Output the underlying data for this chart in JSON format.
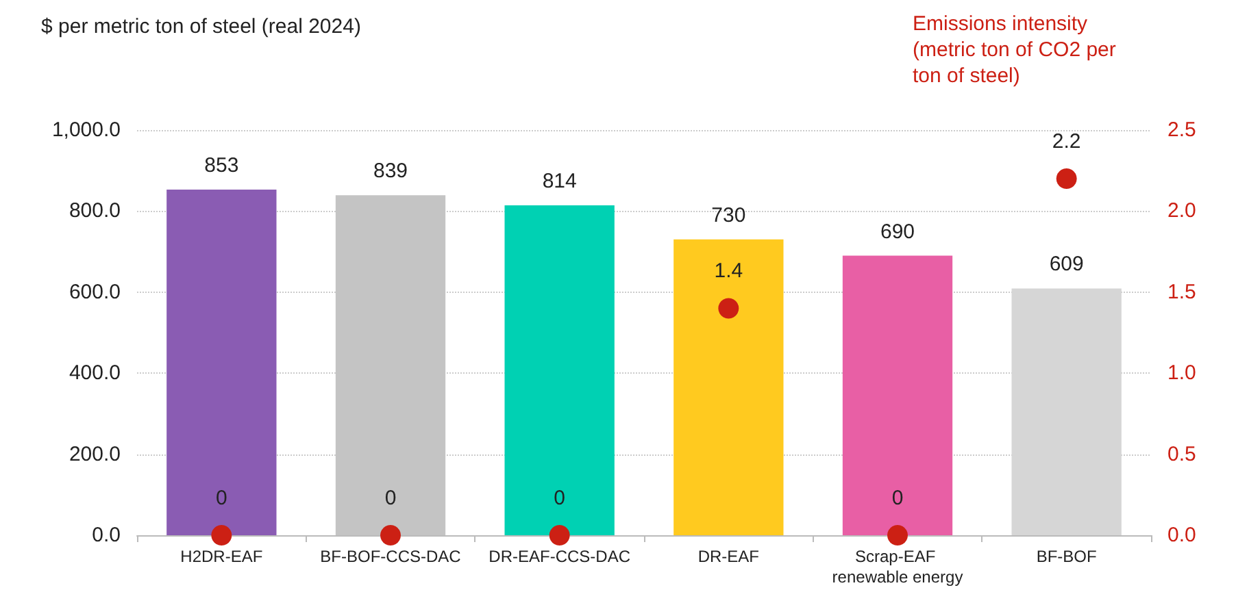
{
  "chart_data": {
    "type": "bar",
    "ylabel": "$ per metric ton of steel (real 2024)",
    "y2label": "Emissions intensity (metric ton of CO2 per ton of steel)",
    "categories": [
      "H2DR-EAF",
      "BF-BOF-CCS-DAC",
      "DR-EAF-CCS-DAC",
      "DR-EAF",
      "Scrap-EAF renewable energy",
      "BF-BOF"
    ],
    "series": [
      {
        "colors": [
          "#8a5cb3",
          "#c4c4c4",
          "#00d1b3",
          "#ffca1f",
          "#e85fa5",
          "#d6d6d6"
        ],
        "values": [
          853,
          839,
          814,
          730,
          690,
          609
        ]
      },
      {
        "type": "scatter",
        "axis": "y2",
        "color": "#cc2014",
        "marker": "circle",
        "x": [
          "H2DR-EAF",
          "BF-BOF-CCS-DAC",
          "DR-EAF-CCS-DAC",
          "DR-EAF",
          "Scrap-EAF renewable energy",
          "BF-BOF"
        ],
        "values": [
          0,
          0,
          0,
          1.4,
          0,
          2.2
        ]
      }
    ],
    "ylim": [
      0,
      1000
    ],
    "yticks": [
      {
        "value": 0,
        "label": "0.0"
      },
      {
        "value": 200,
        "label": "200.0"
      },
      {
        "value": 400,
        "label": "400.0"
      },
      {
        "value": 600,
        "label": "600.0"
      },
      {
        "value": 800,
        "label": "800.0"
      },
      {
        "value": 1000,
        "label": "1,000.0"
      }
    ],
    "y2lim": [
      0,
      2.5
    ],
    "y2ticks": [
      {
        "value": 0,
        "label": "0.0"
      },
      {
        "value": 0.5,
        "label": "0.5"
      },
      {
        "value": 1,
        "label": "1.0"
      },
      {
        "value": 1.5,
        "label": "1.5"
      },
      {
        "value": 2,
        "label": "2.0"
      },
      {
        "value": 2.5,
        "label": "2.5"
      }
    ],
    "data_labels": true,
    "grid": "y"
  }
}
